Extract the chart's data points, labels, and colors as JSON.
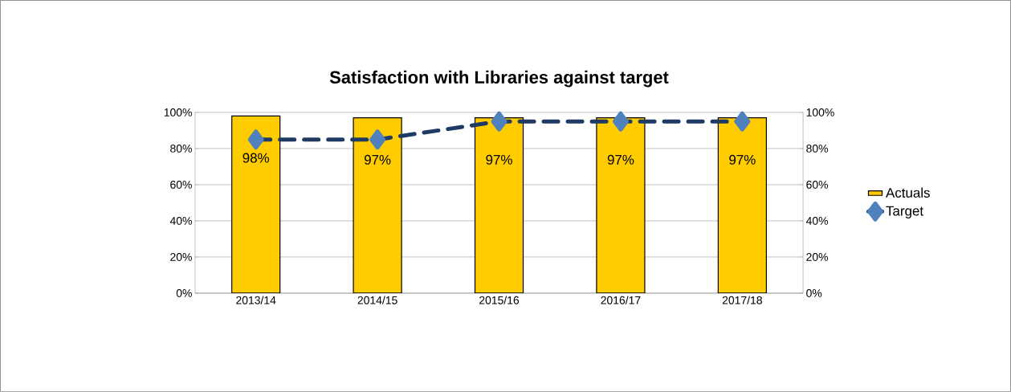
{
  "chart_data": {
    "type": "bar",
    "title": "Satisfaction with Libraries against target",
    "categories": [
      "2013/14",
      "2014/15",
      "2015/16",
      "2016/17",
      "2017/18"
    ],
    "series": [
      {
        "name": "Actuals",
        "color": "#ffcc00",
        "values": [
          98,
          97,
          97,
          97,
          97
        ],
        "value_labels": [
          "98%",
          "97%",
          "97%",
          "97%",
          "97%"
        ]
      },
      {
        "name": "Target",
        "type": "line",
        "axis": "y2",
        "color": "#1f3b63",
        "values": [
          85,
          85,
          95,
          95,
          95
        ],
        "marker": "diamond",
        "line_style": "dashed"
      }
    ],
    "ylim": [
      0,
      100
    ],
    "yticks": [
      {
        "value": 0,
        "label": "0%"
      },
      {
        "value": 20,
        "label": "20%"
      },
      {
        "value": 40,
        "label": "40%"
      },
      {
        "value": 60,
        "label": "60%"
      },
      {
        "value": 80,
        "label": "80%"
      },
      {
        "value": 100,
        "label": "100%"
      }
    ],
    "y2lim": [
      0,
      100
    ],
    "y2ticks": [
      {
        "value": 0,
        "label": "0%"
      },
      {
        "value": 20,
        "label": "20%"
      },
      {
        "value": 40,
        "label": "40%"
      },
      {
        "value": 60,
        "label": "60%"
      },
      {
        "value": 80,
        "label": "80%"
      },
      {
        "value": 100,
        "label": "100%"
      }
    ],
    "grid": "y",
    "legend": "right"
  }
}
